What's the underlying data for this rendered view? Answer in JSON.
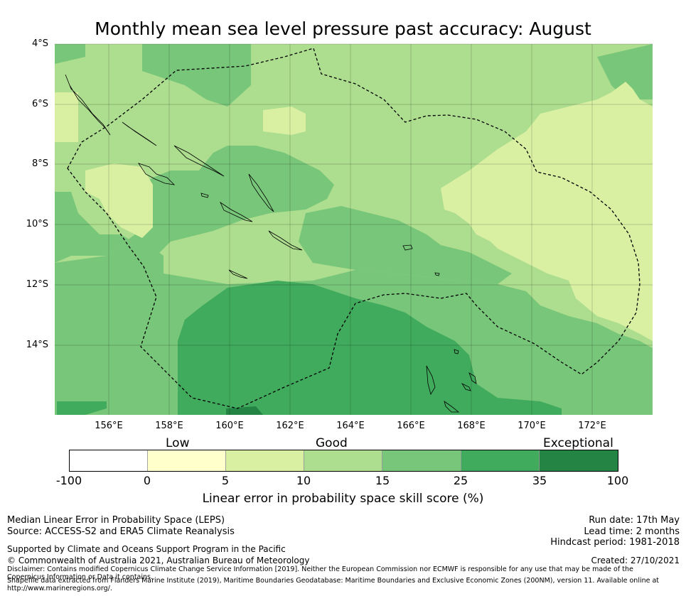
{
  "title": "Monthly mean sea level pressure past accuracy: August",
  "map": {
    "lat_labels": [
      "4°S",
      "6°S",
      "8°S",
      "10°S",
      "12°S",
      "14°S"
    ],
    "lon_labels": [
      "156°E",
      "158°E",
      "160°E",
      "162°E",
      "164°E",
      "166°E",
      "168°E",
      "170°E",
      "172°E"
    ],
    "lon_range_deg_E": [
      154.0,
      174.0
    ],
    "lat_range_deg_S": [
      3.9,
      16.2
    ],
    "colors": {
      "band_0_5": "#ffffcc",
      "band_5_10": "#d9f0a3",
      "band_10_15": "#addd8e",
      "band_15_25": "#78c679",
      "band_25_35": "#41ab5d",
      "band_35_100": "#238443"
    },
    "eez_boundary": "dashed",
    "gridlines": true
  },
  "colorbar": {
    "category_labels": [
      "Low",
      "Good",
      "Exceptional"
    ],
    "ticks": [
      "-100",
      "0",
      "5",
      "10",
      "15",
      "25",
      "35",
      "100"
    ],
    "colors": [
      "#ffffff",
      "#ffffcc",
      "#d9f0a3",
      "#addd8e",
      "#78c679",
      "#41ab5d",
      "#238443"
    ],
    "label": "Linear error in probability space skill score (%)"
  },
  "footer": {
    "left_line1": "Median Linear Error in Probability Space (LEPS)",
    "left_line2": "Source: ACCESS-S2 and ERA5 Climate Reanalysis",
    "right_line1": "Run date: 17th May",
    "right_line2": "Lead time: 2 months",
    "right_line3": "Hindcast period: 1981-2018",
    "support": "Supported by Climate and Oceans Support Program in the Pacific",
    "copyright": "© Commonwealth of Australia 2021, Australian Bureau of Meteorology",
    "created": "Created: 27/10/2021",
    "disclaimer": "Disclaimer: Contains modified Copernicus Climate Change Service Information [2019]. Neither the European Commission nor ECMWF is responsible for any use that may be made of the Copernicus Information or Data it contains.",
    "shapefile": "Shapefile data extracted from Flanders Marine Institute (2019), Maritime Boundaries Geodatabase: Maritime Boundaries and Exclusive Economic Zones (200NM), version 11. Available online at http://www.marineregions.org/."
  }
}
